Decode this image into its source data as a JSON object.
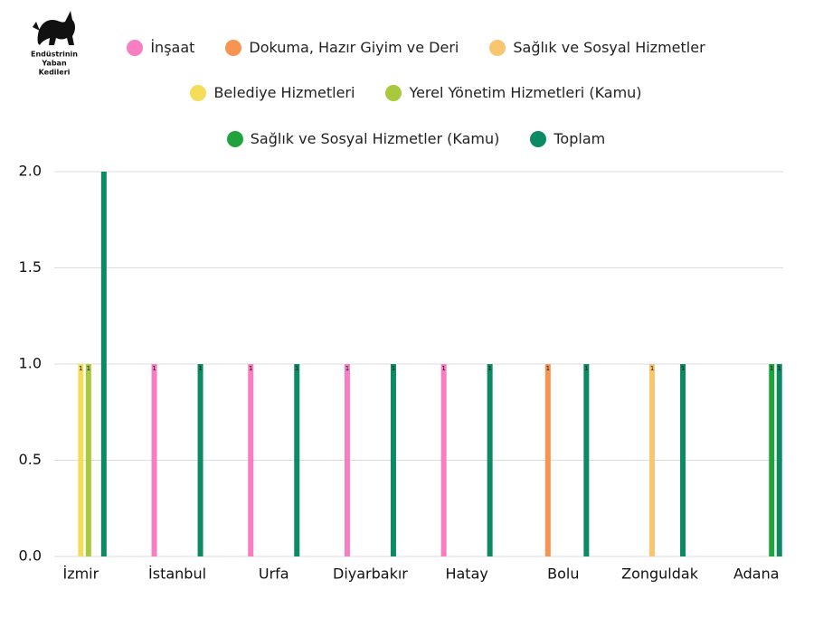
{
  "logo": {
    "lines": [
      "Endüstrinin",
      "Yaban",
      "Kedileri"
    ]
  },
  "chart_data": {
    "type": "bar",
    "categories": [
      "İzmir",
      "İstanbul",
      "Urfa",
      "Diyarbakır",
      "Hatay",
      "Bolu",
      "Zonguldak",
      "Adana"
    ],
    "series": [
      {
        "name": "İnşaat",
        "color": "#f77fc1",
        "values": [
          null,
          1,
          1,
          1,
          1,
          null,
          null,
          null
        ],
        "value_labels": [
          null,
          "1",
          "1",
          "1",
          "1",
          null,
          null,
          null
        ]
      },
      {
        "name": "Dokuma, Hazır Giyim ve Deri",
        "color": "#f79451",
        "values": [
          null,
          null,
          null,
          null,
          null,
          1,
          null,
          null
        ],
        "value_labels": [
          null,
          null,
          null,
          null,
          null,
          "1",
          null,
          null
        ]
      },
      {
        "name": "Sağlık ve Sosyal Hizmetler",
        "color": "#f9c56e",
        "values": [
          null,
          null,
          null,
          null,
          null,
          null,
          1,
          null
        ],
        "value_labels": [
          null,
          null,
          null,
          null,
          null,
          null,
          "1",
          null
        ]
      },
      {
        "name": "Belediye Hizmetleri",
        "color": "#f5dd5c",
        "values": [
          1,
          null,
          null,
          null,
          null,
          null,
          null,
          null
        ],
        "value_labels": [
          "1",
          null,
          null,
          null,
          null,
          null,
          null,
          null
        ]
      },
      {
        "name": "Yerel Yönetim Hizmetleri (Kamu)",
        "color": "#a8c93c",
        "values": [
          1,
          null,
          null,
          null,
          null,
          null,
          null,
          null
        ],
        "value_labels": [
          "1",
          null,
          null,
          null,
          null,
          null,
          null,
          null
        ]
      },
      {
        "name": "Sağlık ve Sosyal Hizmetler (Kamu)",
        "color": "#20a33c",
        "values": [
          null,
          null,
          null,
          null,
          null,
          null,
          null,
          1
        ],
        "value_labels": [
          null,
          null,
          null,
          null,
          null,
          null,
          null,
          "1"
        ]
      },
      {
        "name": "Toplam",
        "color": "#0b8a63",
        "values": [
          2,
          1,
          1,
          1,
          1,
          1,
          1,
          1
        ],
        "value_labels": [
          null,
          "1",
          "1",
          "1",
          "1",
          "1",
          "1",
          "1"
        ]
      }
    ],
    "ylim": [
      0,
      2
    ],
    "yticks": [
      {
        "value": 0,
        "label": "0.0"
      },
      0.5,
      {
        "value": 1,
        "label": "1.0"
      },
      1.5,
      {
        "value": 2,
        "label": "2.0"
      }
    ],
    "grid": true
  }
}
